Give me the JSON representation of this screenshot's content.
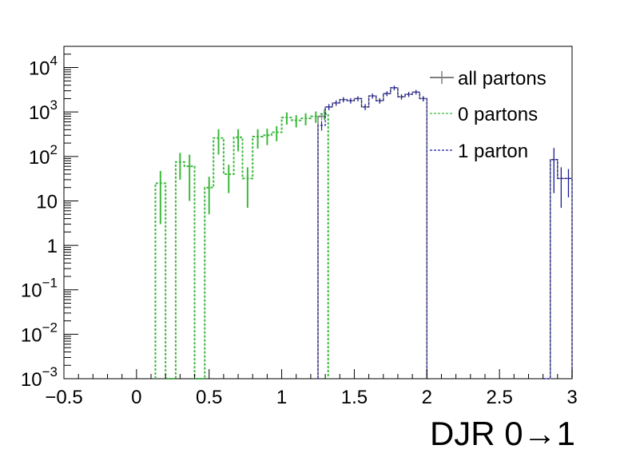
{
  "chart_data": {
    "type": "histogram-step",
    "xlabel": "DJR 0→1",
    "ylabel": "",
    "xlim": [
      -0.5,
      3.0
    ],
    "ylim": [
      0.001,
      30000
    ],
    "y_scale": "log",
    "grid": false,
    "legend_position": "top-right",
    "x_ticks": [
      {
        "v": -0.5,
        "label": "−0.5"
      },
      {
        "v": 0,
        "label": "0"
      },
      {
        "v": 0.5,
        "label": "0.5"
      },
      {
        "v": 1,
        "label": "1"
      },
      {
        "v": 1.5,
        "label": "1.5"
      },
      {
        "v": 2,
        "label": "2"
      },
      {
        "v": 2.5,
        "label": "2.5"
      },
      {
        "v": 3,
        "label": "3"
      }
    ],
    "y_ticks": [
      {
        "v": 0.001,
        "base": "10",
        "exp": "−3"
      },
      {
        "v": 0.01,
        "base": "10",
        "exp": "−2"
      },
      {
        "v": 0.1,
        "base": "10",
        "exp": "−1"
      },
      {
        "v": 1,
        "base": "1",
        "exp": ""
      },
      {
        "v": 10,
        "base": "10",
        "exp": ""
      },
      {
        "v": 100,
        "base": "10",
        "exp": "2"
      },
      {
        "v": 1000,
        "base": "10",
        "exp": "3"
      },
      {
        "v": 10000,
        "base": "10",
        "exp": "4"
      }
    ],
    "series": [
      {
        "name": "all partons",
        "color": "#808080",
        "style": "solid",
        "bins": [
          {
            "x0": 1.25,
            "x1": 1.3,
            "y": 800,
            "err": 150
          },
          {
            "x0": 1.3,
            "x1": 1.35,
            "y": 1300,
            "err": 200
          },
          {
            "x0": 1.35,
            "x1": 1.4,
            "y": 1600,
            "err": 220
          },
          {
            "x0": 1.4,
            "x1": 1.45,
            "y": 1900,
            "err": 250
          },
          {
            "x0": 1.45,
            "x1": 1.5,
            "y": 1800,
            "err": 250
          },
          {
            "x0": 1.5,
            "x1": 1.55,
            "y": 2000,
            "err": 260
          },
          {
            "x0": 1.55,
            "x1": 1.6,
            "y": 1300,
            "err": 200
          },
          {
            "x0": 1.6,
            "x1": 1.65,
            "y": 2300,
            "err": 300
          },
          {
            "x0": 1.65,
            "x1": 1.7,
            "y": 1800,
            "err": 250
          },
          {
            "x0": 1.7,
            "x1": 1.75,
            "y": 2600,
            "err": 320
          },
          {
            "x0": 1.75,
            "x1": 1.8,
            "y": 3500,
            "err": 400
          },
          {
            "x0": 1.8,
            "x1": 1.85,
            "y": 2200,
            "err": 300
          },
          {
            "x0": 1.85,
            "x1": 1.9,
            "y": 2500,
            "err": 320
          },
          {
            "x0": 1.9,
            "x1": 1.95,
            "y": 2800,
            "err": 330
          },
          {
            "x0": 1.95,
            "x1": 2.0,
            "y": 2000,
            "err": 270
          },
          {
            "x0": 2.8,
            "x1": 2.85,
            "y": 0.001,
            "err": 0
          },
          {
            "x0": 2.85,
            "x1": 2.9,
            "y": 85,
            "err": 70
          },
          {
            "x0": 2.9,
            "x1": 2.95,
            "y": 32,
            "err": 25
          },
          {
            "x0": 2.95,
            "x1": 3.0,
            "y": 32,
            "err": 20
          }
        ]
      },
      {
        "name": "0 partons",
        "color": "#3cb93c",
        "style": "dashed",
        "bins": [
          {
            "x0": 0.13,
            "x1": 0.2,
            "y": 25,
            "err": 22
          },
          {
            "x0": 0.2,
            "x1": 0.27,
            "y": 0.001,
            "err": 0
          },
          {
            "x0": 0.27,
            "x1": 0.33,
            "y": 75,
            "err": 45
          },
          {
            "x0": 0.33,
            "x1": 0.4,
            "y": 60,
            "err": 50
          },
          {
            "x0": 0.4,
            "x1": 0.47,
            "y": 0.001,
            "err": 0
          },
          {
            "x0": 0.47,
            "x1": 0.53,
            "y": 20,
            "err": 15
          },
          {
            "x0": 0.53,
            "x1": 0.6,
            "y": 260,
            "err": 150
          },
          {
            "x0": 0.6,
            "x1": 0.67,
            "y": 40,
            "err": 25
          },
          {
            "x0": 0.67,
            "x1": 0.73,
            "y": 270,
            "err": 140
          },
          {
            "x0": 0.73,
            "x1": 0.8,
            "y": 32,
            "err": 25
          },
          {
            "x0": 0.8,
            "x1": 0.87,
            "y": 280,
            "err": 130
          },
          {
            "x0": 0.87,
            "x1": 0.93,
            "y": 300,
            "err": 120
          },
          {
            "x0": 0.93,
            "x1": 1.0,
            "y": 350,
            "err": 130
          },
          {
            "x0": 1.0,
            "x1": 1.07,
            "y": 750,
            "err": 230
          },
          {
            "x0": 1.07,
            "x1": 1.13,
            "y": 650,
            "err": 200
          },
          {
            "x0": 1.13,
            "x1": 1.2,
            "y": 720,
            "err": 220
          },
          {
            "x0": 1.2,
            "x1": 1.27,
            "y": 800,
            "err": 230
          },
          {
            "x0": 1.27,
            "x1": 1.32,
            "y": 900,
            "err": 230
          }
        ]
      },
      {
        "name": "1 parton",
        "color": "#1a1aa0",
        "style": "dashed",
        "bins": [
          {
            "x0": 1.25,
            "x1": 1.3,
            "y": 500,
            "err": 120
          },
          {
            "x0": 1.3,
            "x1": 1.35,
            "y": 1300,
            "err": 200
          },
          {
            "x0": 1.35,
            "x1": 1.4,
            "y": 1600,
            "err": 220
          },
          {
            "x0": 1.4,
            "x1": 1.45,
            "y": 1900,
            "err": 250
          },
          {
            "x0": 1.45,
            "x1": 1.5,
            "y": 1800,
            "err": 250
          },
          {
            "x0": 1.5,
            "x1": 1.55,
            "y": 2000,
            "err": 260
          },
          {
            "x0": 1.55,
            "x1": 1.6,
            "y": 1300,
            "err": 200
          },
          {
            "x0": 1.6,
            "x1": 1.65,
            "y": 2300,
            "err": 300
          },
          {
            "x0": 1.65,
            "x1": 1.7,
            "y": 1800,
            "err": 250
          },
          {
            "x0": 1.7,
            "x1": 1.75,
            "y": 2600,
            "err": 320
          },
          {
            "x0": 1.75,
            "x1": 1.8,
            "y": 3500,
            "err": 400
          },
          {
            "x0": 1.8,
            "x1": 1.85,
            "y": 2200,
            "err": 300
          },
          {
            "x0": 1.85,
            "x1": 1.9,
            "y": 2500,
            "err": 320
          },
          {
            "x0": 1.9,
            "x1": 1.95,
            "y": 2800,
            "err": 330
          },
          {
            "x0": 1.95,
            "x1": 2.0,
            "y": 2000,
            "err": 270
          },
          {
            "x0": 2.8,
            "x1": 2.85,
            "y": 0.001,
            "err": 0
          },
          {
            "x0": 2.85,
            "x1": 2.9,
            "y": 85,
            "err": 70
          },
          {
            "x0": 2.9,
            "x1": 2.95,
            "y": 32,
            "err": 25
          },
          {
            "x0": 2.95,
            "x1": 3.0,
            "y": 32,
            "err": 20
          }
        ]
      }
    ]
  }
}
